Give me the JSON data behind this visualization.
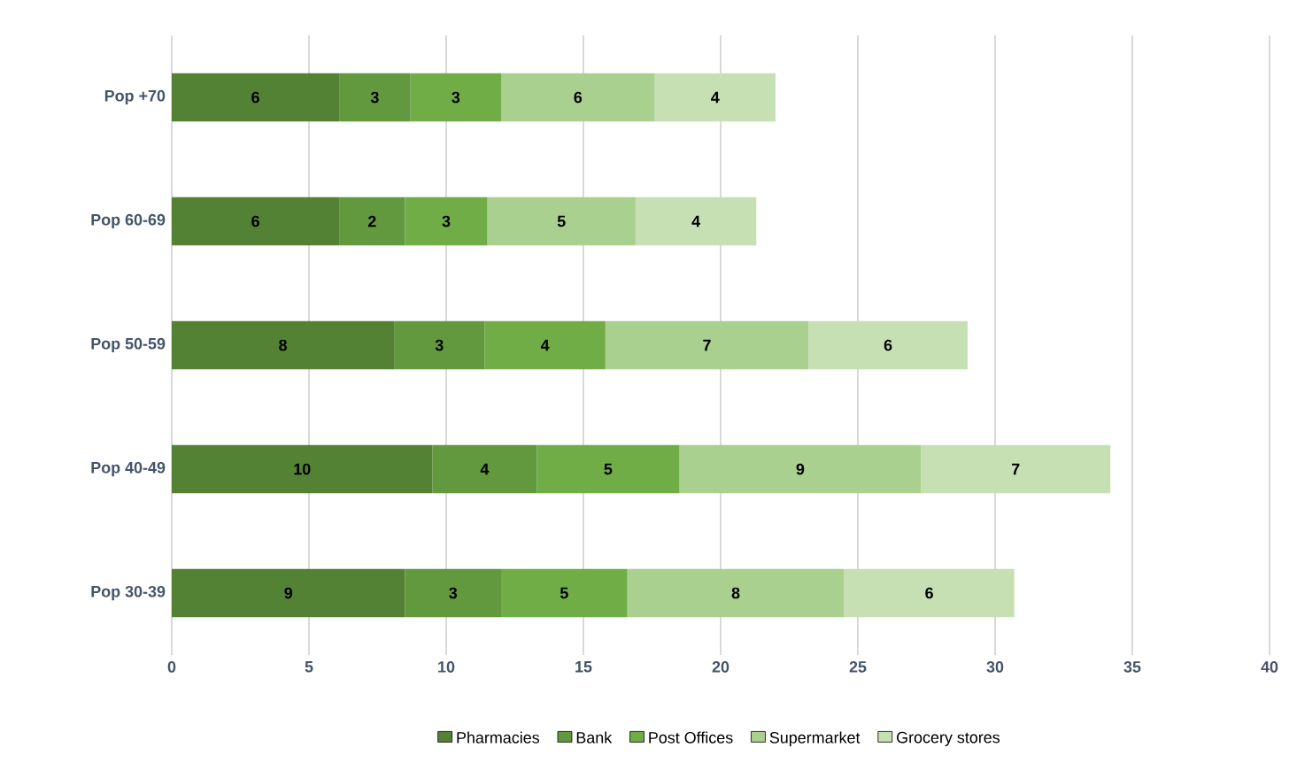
{
  "chart_data": {
    "type": "bar",
    "orientation": "horizontal",
    "stacked": true,
    "categories": [
      "Pop +70",
      "Pop 60-69",
      "Pop 50-59",
      "Pop 40-49",
      "Pop 30-39"
    ],
    "series": [
      {
        "name": "Pharmacies",
        "color": "#548235",
        "values": [
          6.1,
          6.1,
          8.1,
          9.5,
          8.5
        ],
        "value_labels": [
          "6",
          "6",
          "8",
          "10",
          "9"
        ]
      },
      {
        "name": "Bank",
        "color": "#62993e",
        "values": [
          2.6,
          2.4,
          3.3,
          3.8,
          3.5
        ],
        "value_labels": [
          "3",
          "2",
          "3",
          "4",
          "3"
        ]
      },
      {
        "name": "Post Offices",
        "color": "#70ad47",
        "values": [
          3.3,
          3.0,
          4.4,
          5.2,
          4.6
        ],
        "value_labels": [
          "3",
          "3",
          "4",
          "5",
          "5"
        ]
      },
      {
        "name": "Supermarket",
        "color": "#a9d08e",
        "values": [
          5.6,
          5.4,
          7.4,
          8.8,
          7.9
        ],
        "value_labels": [
          "6",
          "5",
          "7",
          "9",
          "8"
        ]
      },
      {
        "name": "Grocery stores",
        "color": "#c6e0b4",
        "values": [
          4.4,
          4.4,
          5.8,
          6.9,
          6.2
        ],
        "value_labels": [
          "4",
          "4",
          "6",
          "7",
          "6"
        ]
      }
    ],
    "xlim": [
      0,
      40
    ],
    "xticks": [
      0,
      5,
      10,
      15,
      20,
      25,
      30,
      35,
      40
    ],
    "grid": "x",
    "legend": "bottom"
  }
}
